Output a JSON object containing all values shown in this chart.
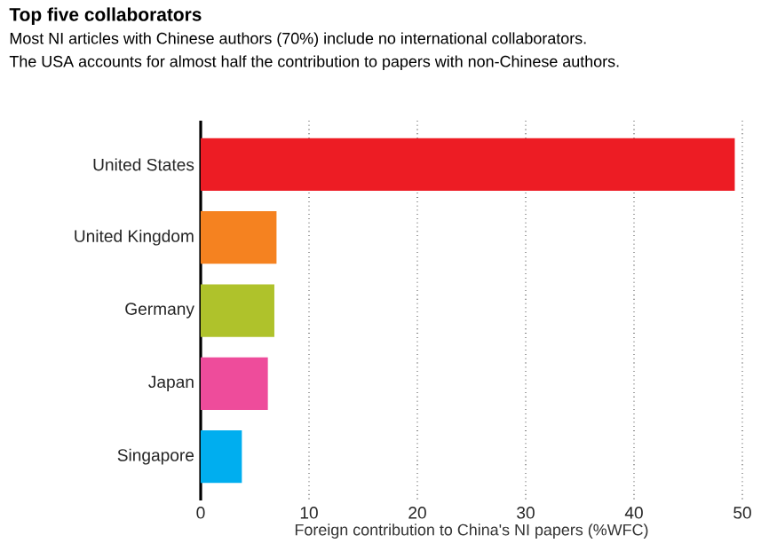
{
  "chart_data": {
    "type": "bar",
    "orientation": "horizontal",
    "title": "Top five collaborators",
    "subtitle": "Most NI articles with Chinese authors (70%) include no international collaborators.",
    "annotations": [
      "The USA accounts for almost half the contribution to papers with non-Chinese authors."
    ],
    "xlabel": "Foreign contribution to China's NI papers (%WFC)",
    "categories": [
      "United States",
      "United Kingdom",
      "Germany",
      "Japan",
      "Singapore"
    ],
    "values": [
      49.3,
      7.0,
      6.8,
      6.2,
      3.8
    ],
    "colors": [
      "#ed1c24",
      "#f58220",
      "#afc22b",
      "#ee4c9b",
      "#00aeef"
    ],
    "xlim": [
      0,
      50
    ],
    "xticks": [
      0,
      10,
      20,
      30,
      40,
      50
    ],
    "grid": "x"
  }
}
